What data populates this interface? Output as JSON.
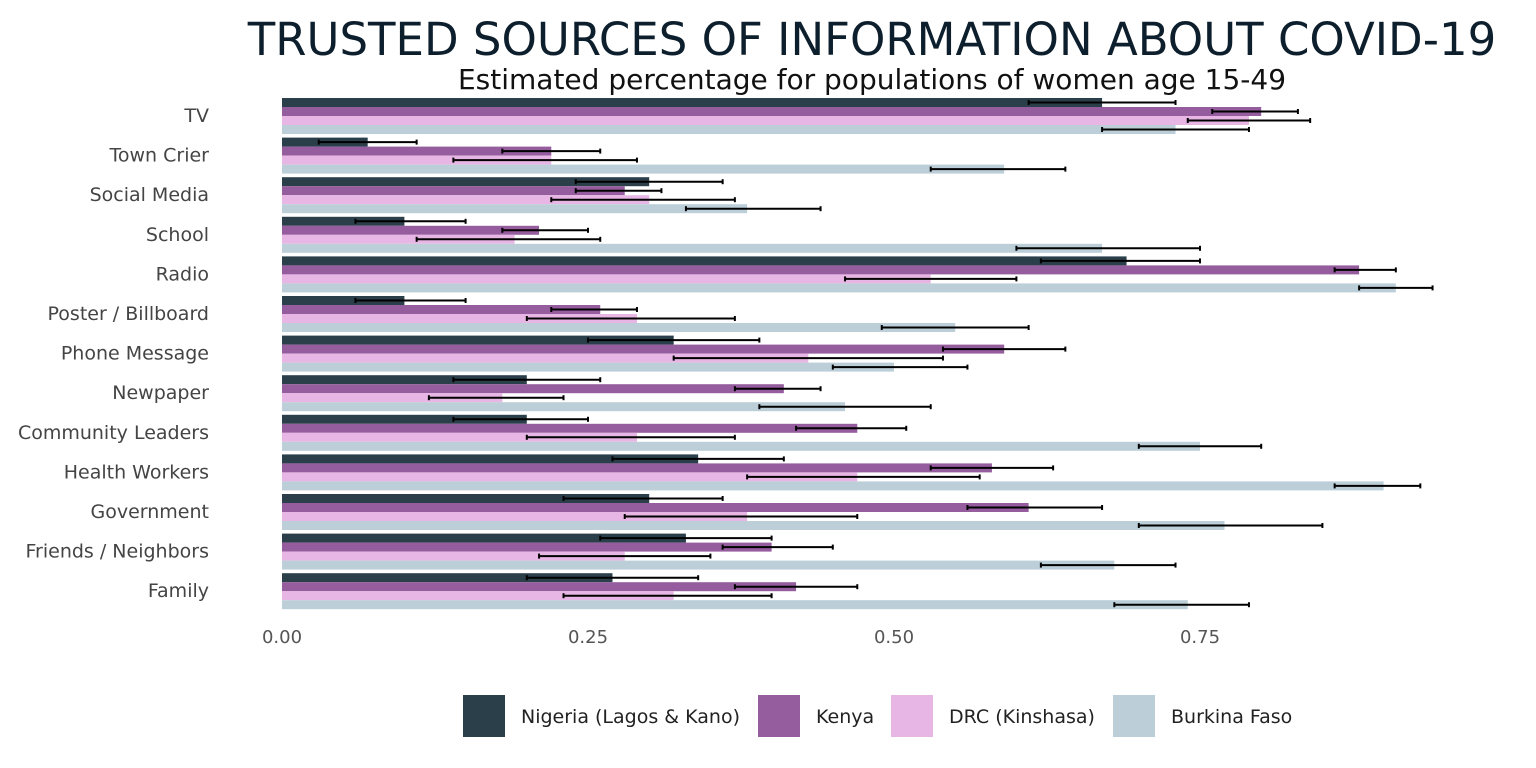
{
  "chart_data": {
    "type": "bar",
    "orientation": "horizontal",
    "title": "TRUSTED SOURCES OF INFORMATION ABOUT COVID-19",
    "subtitle": "Estimated percentage for populations of women age 15-49",
    "categories": [
      "TV",
      "Town Crier",
      "Social Media",
      "School",
      "Radio",
      "Poster / Billboard",
      "Phone Message",
      "Newpaper",
      "Community Leaders",
      "Health Workers",
      "Government",
      "Friends / Neighbors",
      "Family"
    ],
    "series": [
      {
        "name": "Nigeria (Lagos & Kano)",
        "color": "#2b3f4b",
        "values": [
          0.67,
          0.07,
          0.3,
          0.1,
          0.69,
          0.1,
          0.32,
          0.2,
          0.2,
          0.34,
          0.3,
          0.33,
          0.27
        ],
        "lower": [
          0.61,
          0.03,
          0.24,
          0.06,
          0.62,
          0.06,
          0.25,
          0.14,
          0.14,
          0.27,
          0.23,
          0.26,
          0.2
        ],
        "upper": [
          0.73,
          0.11,
          0.36,
          0.15,
          0.75,
          0.15,
          0.39,
          0.26,
          0.25,
          0.41,
          0.36,
          0.4,
          0.34
        ]
      },
      {
        "name": "Kenya",
        "color": "#955c9e",
        "values": [
          0.8,
          0.22,
          0.28,
          0.21,
          0.88,
          0.26,
          0.59,
          0.41,
          0.47,
          0.58,
          0.61,
          0.4,
          0.42
        ],
        "lower": [
          0.76,
          0.18,
          0.24,
          0.18,
          0.86,
          0.22,
          0.54,
          0.37,
          0.42,
          0.53,
          0.56,
          0.36,
          0.37
        ],
        "upper": [
          0.83,
          0.26,
          0.31,
          0.25,
          0.91,
          0.29,
          0.64,
          0.44,
          0.51,
          0.63,
          0.67,
          0.45,
          0.47
        ]
      },
      {
        "name": "DRC (Kinshasa)",
        "color": "#e8b6e4",
        "values": [
          0.79,
          0.22,
          0.3,
          0.19,
          0.53,
          0.29,
          0.43,
          0.18,
          0.29,
          0.47,
          0.38,
          0.28,
          0.32
        ],
        "lower": [
          0.74,
          0.14,
          0.22,
          0.11,
          0.46,
          0.2,
          0.32,
          0.12,
          0.2,
          0.38,
          0.28,
          0.21,
          0.23
        ],
        "upper": [
          0.84,
          0.29,
          0.37,
          0.26,
          0.6,
          0.37,
          0.54,
          0.23,
          0.37,
          0.57,
          0.47,
          0.35,
          0.4
        ]
      },
      {
        "name": "Burkina Faso",
        "color": "#bccfd9",
        "values": [
          0.73,
          0.59,
          0.38,
          0.67,
          0.91,
          0.55,
          0.5,
          0.46,
          0.75,
          0.9,
          0.77,
          0.68,
          0.74
        ],
        "lower": [
          0.67,
          0.53,
          0.33,
          0.6,
          0.88,
          0.49,
          0.45,
          0.39,
          0.7,
          0.86,
          0.7,
          0.62,
          0.68
        ],
        "upper": [
          0.79,
          0.64,
          0.44,
          0.75,
          0.94,
          0.61,
          0.56,
          0.53,
          0.8,
          0.93,
          0.85,
          0.73,
          0.79
        ]
      }
    ],
    "xlim": [
      0,
      0.95
    ],
    "xticks": [
      0,
      0.25,
      0.5,
      0.75
    ],
    "xtick_labels": [
      "0.00",
      "0.25",
      "0.50",
      "0.75"
    ],
    "grid": false,
    "legend_position": "bottom"
  }
}
